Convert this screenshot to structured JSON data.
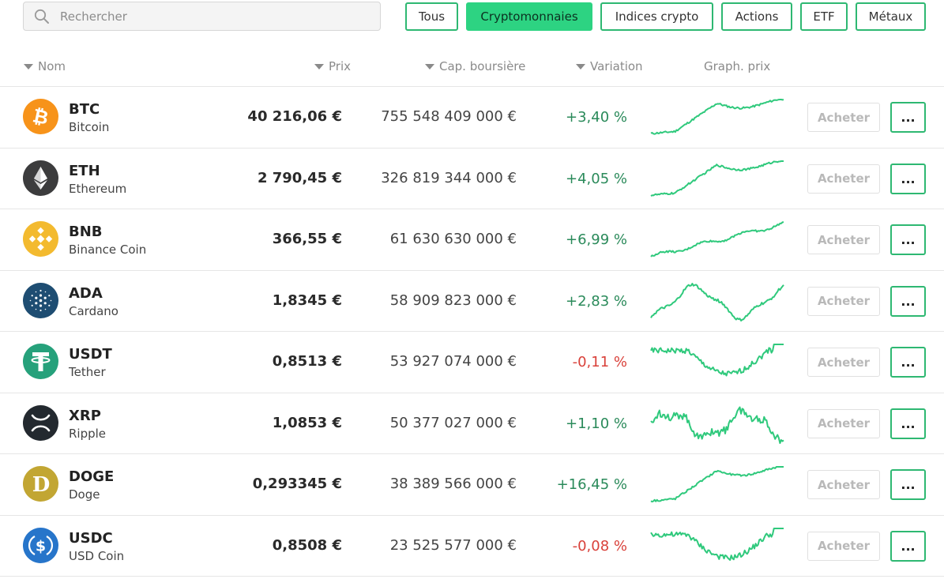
{
  "search": {
    "placeholder": "Rechercher",
    "value": ""
  },
  "filters": [
    {
      "label": "Tous",
      "active": false
    },
    {
      "label": "Cryptomonnaies",
      "active": true
    },
    {
      "label": "Indices crypto",
      "active": false
    },
    {
      "label": "Actions",
      "active": false
    },
    {
      "label": "ETF",
      "active": false
    },
    {
      "label": "Métaux",
      "active": false
    }
  ],
  "columns": {
    "name": "Nom",
    "price": "Prix",
    "market_cap": "Cap. boursière",
    "change": "Variation",
    "chart": "Graph. prix"
  },
  "actions": {
    "buy_label": "Acheter",
    "more_label": "..."
  },
  "colors": {
    "accent": "#2eb872",
    "positive": "#2a8a5a",
    "negative": "#d9413a",
    "spark": "#2fc97c"
  },
  "assets": [
    {
      "symbol": "BTC",
      "name": "Bitcoin",
      "price": "40 216,06 €",
      "market_cap": "755 548 409 000 €",
      "change": "+3,40 %",
      "direction": "positive",
      "icon": "bitcoin-icon",
      "logo_color": "#f7931a",
      "trend": "up-plateau"
    },
    {
      "symbol": "ETH",
      "name": "Ethereum",
      "price": "2 790,45 €",
      "market_cap": "326 819 344 000 €",
      "change": "+4,05 %",
      "direction": "positive",
      "icon": "ethereum-icon",
      "logo_color": "#3c3c3d",
      "trend": "up-plateau"
    },
    {
      "symbol": "BNB",
      "name": "Binance Coin",
      "price": "366,55 €",
      "market_cap": "61 630 630 000 €",
      "change": "+6,99 %",
      "direction": "positive",
      "icon": "binance-coin-icon",
      "logo_color": "#f3ba2f",
      "trend": "steady-up"
    },
    {
      "symbol": "ADA",
      "name": "Cardano",
      "price": "1,8345 €",
      "market_cap": "58 909 823 000 €",
      "change": "+2,83 %",
      "direction": "positive",
      "icon": "cardano-icon",
      "logo_color": "#1e4d72",
      "trend": "wave"
    },
    {
      "symbol": "USDT",
      "name": "Tether",
      "price": "0,8513 €",
      "market_cap": "53 927 074 000 €",
      "change": "-0,11 %",
      "direction": "negative",
      "icon": "tether-icon",
      "logo_color": "#26a17b",
      "trend": "dip"
    },
    {
      "symbol": "XRP",
      "name": "Ripple",
      "price": "1,0853 €",
      "market_cap": "50 377 027 000 €",
      "change": "+1,10 %",
      "direction": "positive",
      "icon": "ripple-icon",
      "logo_color": "#23292f",
      "trend": "noisy-wave"
    },
    {
      "symbol": "DOGE",
      "name": "Doge",
      "price": "0,293345 €",
      "market_cap": "38 389 566 000 €",
      "change": "+16,45 %",
      "direction": "positive",
      "icon": "dogecoin-icon",
      "logo_color": "#c2a633",
      "trend": "up-plateau"
    },
    {
      "symbol": "USDC",
      "name": "USD Coin",
      "price": "0,8508 €",
      "market_cap": "23 525 577 000 €",
      "change": "-0,08 %",
      "direction": "negative",
      "icon": "usd-coin-icon",
      "logo_color": "#2775ca",
      "trend": "dip"
    }
  ]
}
